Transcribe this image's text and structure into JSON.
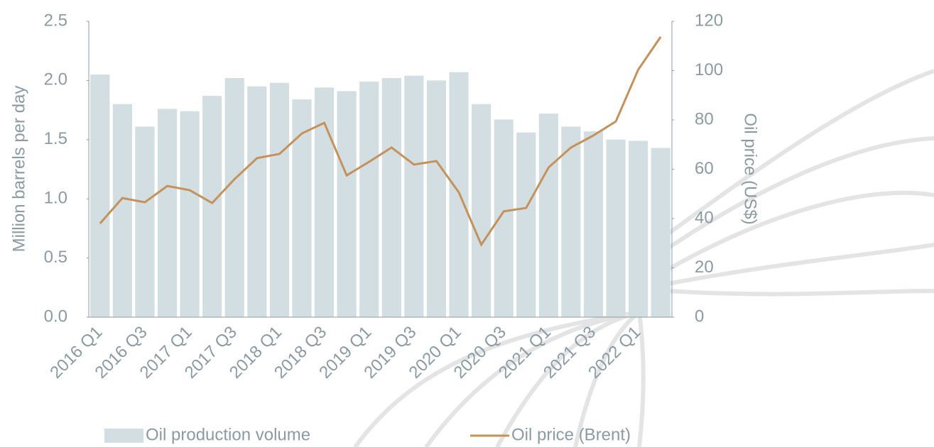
{
  "chart_data": {
    "type": "bar",
    "y_label": "Million barrels per day",
    "y2_label": "Oil price (US$)",
    "categories": [
      "2016 Q1",
      null,
      "2016 Q3",
      null,
      "2017 Q1",
      null,
      "2017 Q3",
      null,
      "2018 Q1",
      null,
      "2018 Q3",
      null,
      "2019 Q1",
      null,
      "2019 Q3",
      null,
      "2020 Q1",
      null,
      "2020 Q3",
      null,
      "2021 Q1",
      null,
      "2021 Q3",
      null,
      "2022 Q1",
      null
    ],
    "series": [
      {
        "name": "Oil production volume",
        "type": "bar",
        "color": "#d3dee3",
        "values": [
          2.05,
          1.8,
          1.61,
          1.76,
          1.74,
          1.87,
          2.02,
          1.95,
          1.98,
          1.84,
          1.94,
          1.91,
          1.99,
          2.02,
          2.04,
          2.0,
          2.07,
          1.8,
          1.67,
          1.56,
          1.72,
          1.61,
          1.57,
          1.5,
          1.49,
          1.43
        ]
      },
      {
        "name": "Oil price (Brent)",
        "type": "line",
        "axis": "y2",
        "color": "#c4925a",
        "values": [
          38,
          48.3,
          46.6,
          53.2,
          51.5,
          46.3,
          56,
          64.5,
          66.2,
          74.5,
          78.8,
          57.5,
          63,
          68.8,
          61.9,
          63.3,
          50.6,
          29.4,
          42.9,
          44.3,
          60.7,
          68.8,
          73.7,
          79.4,
          100.4,
          113.7
        ]
      }
    ],
    "ylim": [
      0,
      2.5
    ],
    "yticks": [
      {
        "value": 0,
        "label": "0.0"
      },
      0.5,
      {
        "value": 1,
        "label": "1.0"
      },
      1.5,
      {
        "value": 2,
        "label": "2.0"
      },
      2.5
    ],
    "y2lim": [
      0,
      120
    ],
    "y2ticks": [
      0,
      20,
      40,
      60,
      80,
      100,
      120
    ],
    "legend": "bottom",
    "grid": false
  }
}
